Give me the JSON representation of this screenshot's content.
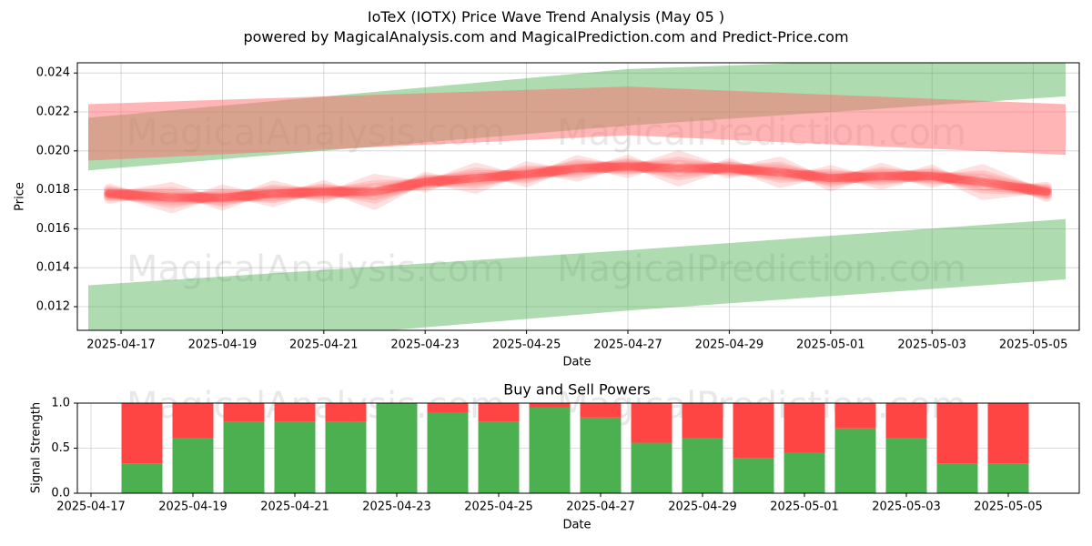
{
  "title": "IoTeX (IOTX) Price Wave Trend Analysis (May 05 )",
  "subtitle": "powered by MagicalAnalysis.com and MagicalPrediction.com and Predict-Price.com",
  "watermarks": [
    "MagicalAnalysis.com",
    "MagicalPrediction.com"
  ],
  "colors": {
    "price": "#ff4040",
    "band_green": "#4caf50",
    "band_red": "#ff6b6b",
    "buy": "#4caf50",
    "sell": "#ff4444"
  },
  "chart_data": [
    {
      "type": "line",
      "xlabel": "Date",
      "ylabel": "Price",
      "grid": true,
      "x_ticks": [
        "2025-04-17",
        "2025-04-19",
        "2025-04-21",
        "2025-04-23",
        "2025-04-25",
        "2025-04-27",
        "2025-04-29",
        "2025-05-01",
        "2025-05-03",
        "2025-05-05"
      ],
      "y_ticks": [
        "0.012",
        "0.014",
        "0.016",
        "0.018",
        "0.020",
        "0.022",
        "0.024"
      ],
      "xlim": [
        "2025-04-15",
        "2025-05-06"
      ],
      "ylim": [
        0.0108,
        0.0246
      ],
      "price_series": {
        "x": [
          "2025-04-17",
          "2025-04-18",
          "2025-04-19",
          "2025-04-20",
          "2025-04-21",
          "2025-04-22",
          "2025-04-23",
          "2025-04-24",
          "2025-04-25",
          "2025-04-26",
          "2025-04-27",
          "2025-04-28",
          "2025-04-29",
          "2025-04-30",
          "2025-05-01",
          "2025-05-02",
          "2025-05-03",
          "2025-05-04",
          "2025-05-05"
        ],
        "values": [
          0.0178,
          0.0176,
          0.0176,
          0.0178,
          0.0179,
          0.0179,
          0.0184,
          0.0186,
          0.0188,
          0.0191,
          0.0192,
          0.0191,
          0.0191,
          0.0189,
          0.0186,
          0.0187,
          0.0187,
          0.0184,
          0.0179
        ]
      },
      "bands": [
        {
          "color": "green",
          "x": [
            "2025-04-15",
            "2025-04-27",
            "2025-05-05"
          ],
          "upper": [
            0.0217,
            0.0242,
            0.025
          ],
          "lower": [
            0.019,
            0.0213,
            0.0228
          ]
        },
        {
          "color": "red",
          "x": [
            "2025-04-15",
            "2025-04-27",
            "2025-05-05"
          ],
          "upper": [
            0.0224,
            0.0233,
            0.0224
          ],
          "lower": [
            0.0195,
            0.0208,
            0.0198
          ]
        },
        {
          "color": "green",
          "x": [
            "2025-04-15",
            "2025-04-27",
            "2025-05-05"
          ],
          "upper": [
            0.0131,
            0.0149,
            0.0165
          ],
          "lower": [
            0.0095,
            0.0118,
            0.0134
          ]
        }
      ]
    },
    {
      "type": "bar",
      "title": "Buy and Sell Powers",
      "xlabel": "Date",
      "ylabel": "Signal Strength",
      "x_ticks": [
        "2025-04-17",
        "2025-04-19",
        "2025-04-21",
        "2025-04-23",
        "2025-04-25",
        "2025-04-27",
        "2025-04-29",
        "2025-05-01",
        "2025-05-03",
        "2025-05-05"
      ],
      "y_ticks": [
        "0.0",
        "0.5",
        "1.0"
      ],
      "ylim": [
        0,
        1
      ],
      "categories": [
        "2025-04-18",
        "2025-04-19",
        "2025-04-20",
        "2025-04-21",
        "2025-04-22",
        "2025-04-23",
        "2025-04-24",
        "2025-04-25",
        "2025-04-26",
        "2025-04-27",
        "2025-04-28",
        "2025-04-29",
        "2025-04-30",
        "2025-05-01",
        "2025-05-02",
        "2025-05-03",
        "2025-05-04",
        "2025-05-05"
      ],
      "series": [
        {
          "values": [
            0.33,
            0.61,
            0.79,
            0.79,
            0.79,
            1.0,
            0.89,
            0.79,
            0.95,
            0.84,
            0.56,
            0.61,
            0.39,
            0.45,
            0.72,
            0.61,
            0.33,
            0.33
          ]
        },
        {
          "values": [
            0.67,
            0.39,
            0.21,
            0.21,
            0.21,
            0.0,
            0.11,
            0.21,
            0.05,
            0.16,
            0.44,
            0.39,
            0.61,
            0.55,
            0.28,
            0.39,
            0.67,
            0.67
          ]
        }
      ]
    }
  ]
}
